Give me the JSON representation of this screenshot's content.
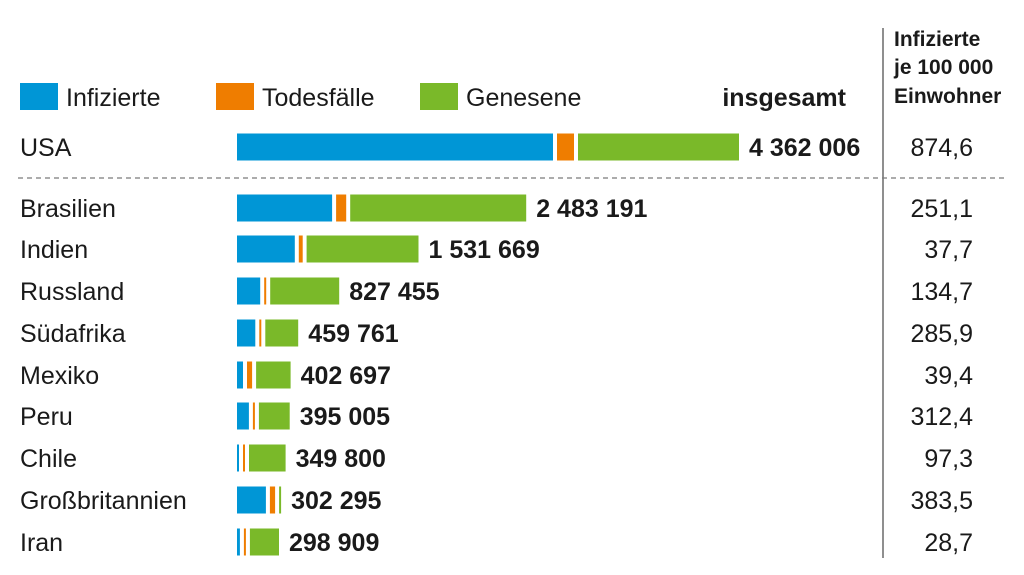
{
  "chart_data": {
    "type": "bar",
    "stacked": true,
    "orientation": "horizontal",
    "legend": [
      {
        "label": "Infizierte",
        "color": "#0096d6"
      },
      {
        "label": "Todesfälle",
        "color": "#ef7d00"
      },
      {
        "label": "Genesene",
        "color": "#7ab929"
      }
    ],
    "total_header": "insgesamt",
    "rate_header": [
      "Infizierte",
      "je 100 000",
      "Einwohner"
    ],
    "rows": [
      {
        "country": "USA",
        "total": 4362006,
        "total_label": "4 362 006",
        "infected": 2790000,
        "deaths": 150000,
        "recovered": 1422006,
        "rate_label": "874,6"
      },
      {
        "country": "Brasilien",
        "total": 2483191,
        "total_label": "2 483 191",
        "infected": 840000,
        "deaths": 89000,
        "recovered": 1554191,
        "rate_label": "251,1"
      },
      {
        "country": "Indien",
        "total": 1531669,
        "total_label": "1 531 669",
        "infected": 510000,
        "deaths": 34000,
        "recovered": 987669,
        "rate_label": "37,7"
      },
      {
        "country": "Russland",
        "total": 827455,
        "total_label": "827 455",
        "infected": 205000,
        "deaths": 13000,
        "recovered": 609455,
        "rate_label": "134,7"
      },
      {
        "country": "Südafrika",
        "total": 459761,
        "total_label": "459 761",
        "infected": 162000,
        "deaths": 7000,
        "recovered": 290761,
        "rate_label": "285,9"
      },
      {
        "country": "Mexiko",
        "total": 402697,
        "total_label": "402 697",
        "infected": 53000,
        "deaths": 45000,
        "recovered": 304697,
        "rate_label": "39,4"
      },
      {
        "country": "Peru",
        "total": 395005,
        "total_label": "395 005",
        "infected": 105000,
        "deaths": 18000,
        "recovered": 272005,
        "rate_label": "312,4"
      },
      {
        "country": "Chile",
        "total": 349800,
        "total_label": "349 800",
        "infected": 18000,
        "deaths": 9000,
        "recovered": 322800,
        "rate_label": "97,3"
      },
      {
        "country": "Großbritannien",
        "total": 302295,
        "total_label": "302 295",
        "infected": 255000,
        "deaths": 46000,
        "recovered": 1295,
        "rate_label": "383,5"
      },
      {
        "country": "Iran",
        "total": 298909,
        "total_label": "298 909",
        "infected": 26000,
        "deaths": 16000,
        "recovered": 256909,
        "rate_label": "28,7"
      }
    ]
  }
}
